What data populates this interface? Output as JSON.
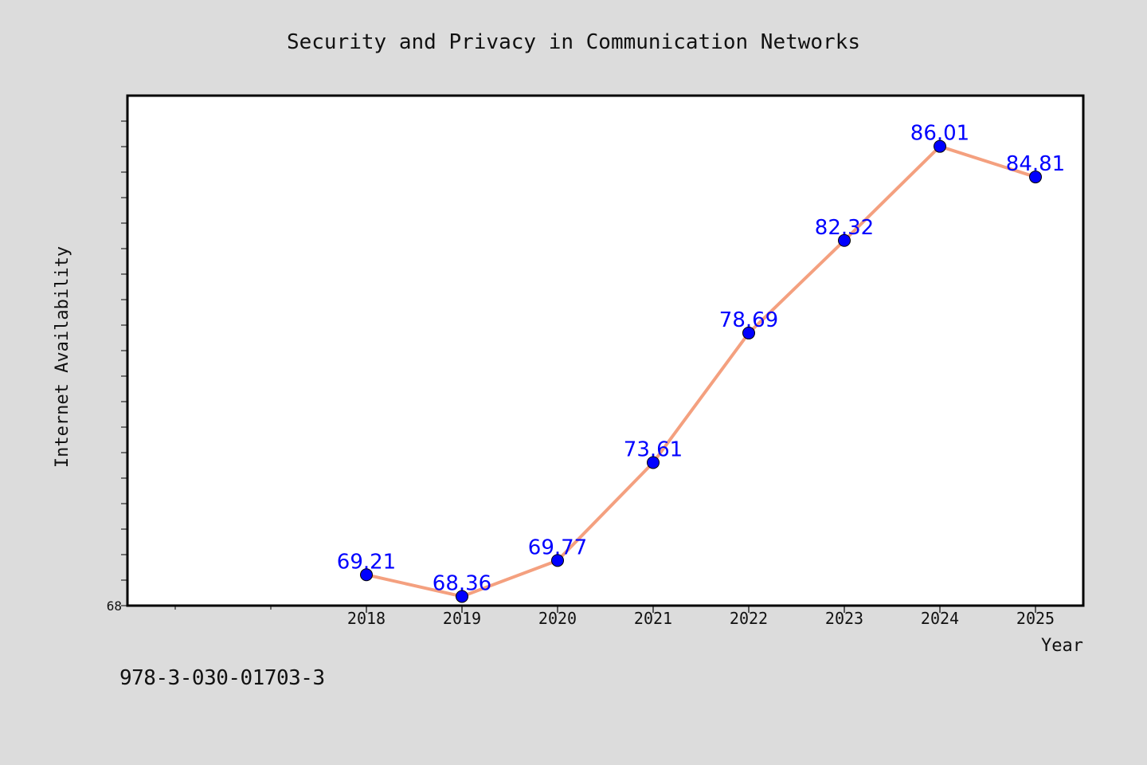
{
  "figure": {
    "footer_text": "978-3-030-01703-3"
  },
  "chart_data": {
    "type": "line",
    "title": "Security and Privacy in Communication Networks",
    "xlabel": "Year",
    "ylabel": "Internet Availability",
    "categories": [
      "2018",
      "2019",
      "2020",
      "2021",
      "2022",
      "2023",
      "2024",
      "2025"
    ],
    "series": [
      {
        "values": [
          69.21,
          68.36,
          69.77,
          73.61,
          78.69,
          82.32,
          86.01,
          84.81
        ],
        "labels": [
          "69.21",
          "68.36",
          "69.77",
          "73.61",
          "78.69",
          "82.32",
          "86.01",
          "84.81"
        ],
        "line_color": "#f4a07f",
        "marker_color": "#0000ff",
        "label_color": "#0000ff"
      }
    ],
    "x_range": [
      2015.5,
      2025.5
    ],
    "ylim": [
      68,
      88
    ],
    "y_tick_labels": [
      "68"
    ],
    "y_minor_step": 1,
    "grid": false,
    "legend": "none",
    "background": "#dcdcdc",
    "plot_background": "#ffffff"
  }
}
